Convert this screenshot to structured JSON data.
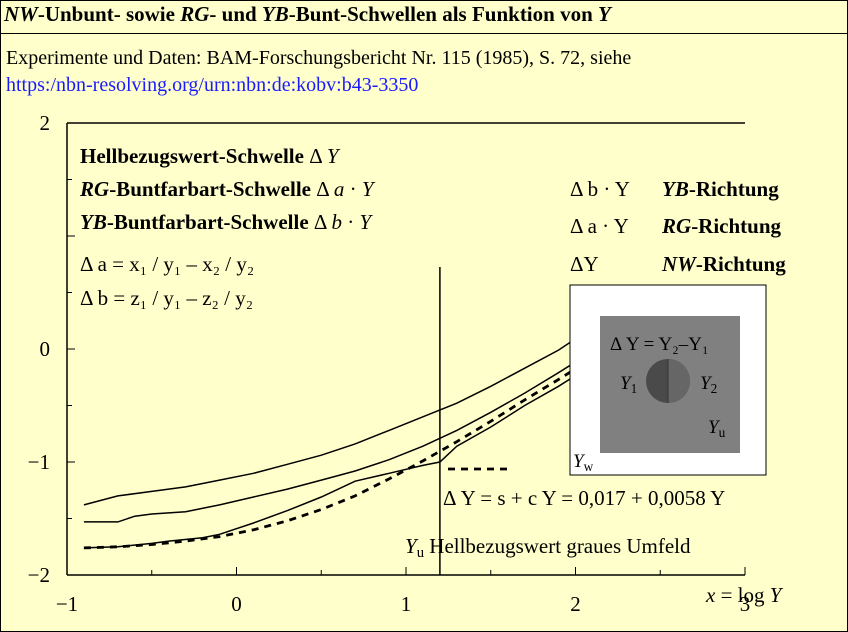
{
  "title_parts": [
    {
      "t": "NW",
      "i": true
    },
    {
      "t": "-Unbunt- sowie ",
      "i": false
    },
    {
      "t": "RG",
      "i": true
    },
    {
      "t": "- und ",
      "i": false
    },
    {
      "t": "YB",
      "i": true
    },
    {
      "t": "-Bunt-Schwellen als Funktion von ",
      "i": false
    },
    {
      "t": "Y",
      "i": true
    }
  ],
  "source_text": "Experimente und Daten: BAM-Forschungsbericht Nr. 115 (1985), S. 72, siehe",
  "source_link": "https:/nbn-resolving.org/urn:nbn:de:kobv:b43-3350",
  "chart_data": {
    "type": "line",
    "x_ticks": [
      "−1",
      "0",
      "1",
      "2",
      "3"
    ],
    "y_ticks": [
      "2",
      "0",
      "−1",
      "−2"
    ],
    "xlabel": "x = log Y",
    "xlim": [
      -1,
      3
    ],
    "ylim": [
      -2,
      2
    ],
    "series": [
      {
        "name": "Δ b · Y  YB-Richtung",
        "dash": false,
        "x": [
          -0.9,
          -0.7,
          -0.5,
          -0.3,
          -0.1,
          0.1,
          0.3,
          0.5,
          0.7,
          0.9,
          1.1,
          1.3,
          1.5,
          1.7,
          1.9,
          2.1,
          2.3
        ],
        "y": [
          -1.38,
          -1.3,
          -1.26,
          -1.22,
          -1.16,
          -1.1,
          -1.02,
          -0.94,
          -0.84,
          -0.72,
          -0.6,
          -0.48,
          -0.33,
          -0.17,
          -0.01,
          0.19,
          0.4
        ]
      },
      {
        "name": "Δ a · Y  RG-Richtung",
        "dash": false,
        "x": [
          -0.9,
          -0.7,
          -0.6,
          -0.5,
          -0.3,
          -0.1,
          0.1,
          0.3,
          0.5,
          0.7,
          0.9,
          1.1,
          1.3,
          1.5,
          1.7,
          1.9,
          2.1,
          2.3
        ],
        "y": [
          -1.53,
          -1.53,
          -1.48,
          -1.46,
          -1.44,
          -1.38,
          -1.31,
          -1.24,
          -1.16,
          -1.08,
          -0.98,
          -0.86,
          -0.72,
          -0.56,
          -0.39,
          -0.21,
          -0.02,
          0.18
        ]
      },
      {
        "name": "ΔY  NW-Richtung",
        "dash": false,
        "x": [
          -0.9,
          -0.7,
          -0.5,
          -0.4,
          -0.2,
          -0.1,
          0.1,
          0.3,
          0.5,
          0.7,
          0.9,
          1.1,
          1.2,
          1.3,
          1.5,
          1.7,
          1.9,
          2.1,
          2.3
        ],
        "y": [
          -1.76,
          -1.75,
          -1.72,
          -1.7,
          -1.67,
          -1.64,
          -1.54,
          -1.43,
          -1.31,
          -1.17,
          -1.1,
          -1.03,
          -1.0,
          -0.86,
          -0.69,
          -0.5,
          -0.33,
          -0.14,
          0.06
        ]
      },
      {
        "name": "Δ Y = s + c Y",
        "dash": true,
        "x": [
          -0.9,
          -0.7,
          -0.5,
          -0.3,
          -0.1,
          0.1,
          0.3,
          0.5,
          0.7,
          0.9,
          1.1,
          1.3,
          1.5,
          1.7,
          1.9,
          2.1,
          2.3
        ],
        "y": [
          -1.76,
          -1.75,
          -1.73,
          -1.7,
          -1.66,
          -1.6,
          -1.52,
          -1.42,
          -1.3,
          -1.15,
          -0.99,
          -0.82,
          -0.64,
          -0.45,
          -0.27,
          -0.08,
          0.12
        ]
      }
    ],
    "vline_x": 1.2,
    "legend": {
      "line1": {
        "bold": "Hellbezugswert-Schwelle",
        "rest": "Δ Y"
      },
      "line2": {
        "boldi": "RG",
        "bold": "-Buntfarbart-Schwelle",
        "rest": "Δ a · Y"
      },
      "line3": {
        "boldi": "YB",
        "bold": "-Buntfarbart-Schwelle",
        "rest": "Δ b · Y"
      },
      "line4": "Δ a = x₁ / y₁ – x₂ / y₂",
      "line5": "Δ b = z₁ / y₁ – z₂ / y₂"
    },
    "right_labels": [
      {
        "sym": "Δ b · Y",
        "dir_i": "YB",
        "dir": "-Richtung"
      },
      {
        "sym": "Δ a · Y",
        "dir_i": "RG",
        "dir": "-Richtung"
      },
      {
        "sym": "ΔY",
        "dir_i": "NW",
        "dir": "-Richtung"
      }
    ],
    "formula": "Δ Y = s + c Y = 0,017 + 0,0058 Y",
    "yu_label": {
      "sym": "Y",
      "sub": "u",
      "text": "Hellbezugswert graues Umfeld"
    },
    "inset": {
      "eq": "Δ Y = Y₂–Y₁",
      "y1": "Y",
      "y1sub": "1",
      "y2": "Y",
      "y2sub": "2",
      "yu": "Y",
      "yusub": "u",
      "yw": "Y",
      "ywsub": "w"
    }
  }
}
